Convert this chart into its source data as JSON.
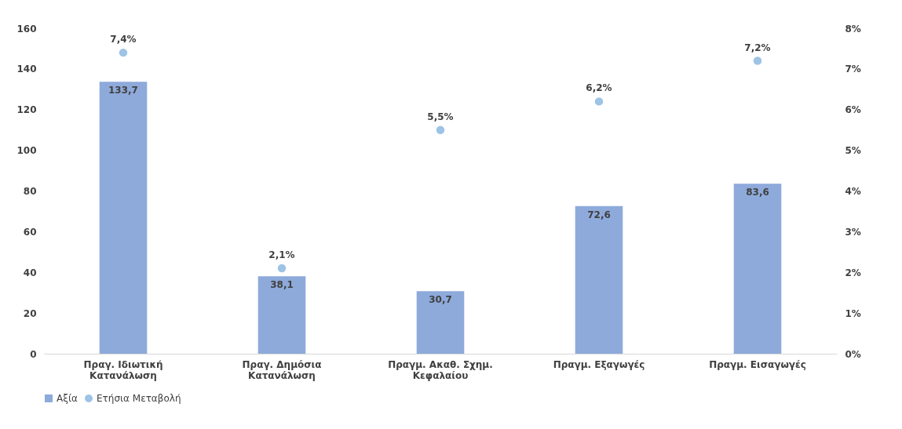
{
  "chart_data": {
    "type": "bar",
    "categories": [
      "Πραγ. Ιδιωτική Κατανάλωση",
      "Πραγ. Δημόσια Κατανάλωση",
      "Πραγμ. Ακαθ. Σχημ. Κεφαλαίου",
      "Πραγμ. Εξαγωγές",
      "Πραγμ. Εισαγωγές"
    ],
    "series": [
      {
        "name": "Αξία",
        "color": "#8eaadb",
        "values": [
          133.7,
          38.1,
          30.7,
          72.6,
          83.6
        ],
        "value_labels": [
          "133,7",
          "38,1",
          "30,7",
          "72,6",
          "83,6"
        ]
      },
      {
        "name": "Ετήσια Μεταβολή",
        "type": "scatter",
        "axis": "y2",
        "color": "#9dc3e6",
        "values": [
          7.4,
          2.1,
          5.5,
          6.2,
          7.2
        ],
        "value_labels": [
          "7,4%",
          "2,1%",
          "5,5%",
          "6,2%",
          "7,2%"
        ]
      }
    ],
    "ylim": [
      0,
      160
    ],
    "yticks": [
      0,
      20,
      40,
      60,
      80,
      100,
      120,
      140,
      160
    ],
    "y2lim": [
      0,
      8
    ],
    "y2ticks": [
      {
        "value": 0,
        "label": "0%"
      },
      {
        "value": 1,
        "label": "1%"
      },
      {
        "value": 2,
        "label": "2%"
      },
      {
        "value": 3,
        "label": "3%"
      },
      {
        "value": 4,
        "label": "4%"
      },
      {
        "value": 5,
        "label": "5%"
      },
      {
        "value": 6,
        "label": "6%"
      },
      {
        "value": 7,
        "label": "7%"
      },
      {
        "value": 8,
        "label": "8%"
      }
    ],
    "grid": false,
    "legend": "bottom",
    "marker": "circle"
  }
}
